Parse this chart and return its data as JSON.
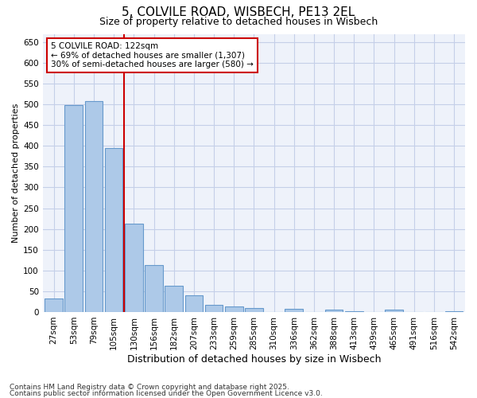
{
  "title_line1": "5, COLVILE ROAD, WISBECH, PE13 2EL",
  "title_line2": "Size of property relative to detached houses in Wisbech",
  "xlabel": "Distribution of detached houses by size in Wisbech",
  "ylabel": "Number of detached properties",
  "categories": [
    "27sqm",
    "53sqm",
    "79sqm",
    "105sqm",
    "130sqm",
    "156sqm",
    "182sqm",
    "207sqm",
    "233sqm",
    "259sqm",
    "285sqm",
    "310sqm",
    "336sqm",
    "362sqm",
    "388sqm",
    "413sqm",
    "439sqm",
    "465sqm",
    "491sqm",
    "516sqm",
    "542sqm"
  ],
  "values": [
    33,
    498,
    508,
    395,
    213,
    113,
    63,
    40,
    18,
    13,
    10,
    0,
    8,
    0,
    5,
    1,
    0,
    5,
    0,
    0,
    2
  ],
  "bar_color": "#adc9e8",
  "bar_edge_color": "#6699cc",
  "ref_line_index": 4,
  "ref_line_color": "#cc0000",
  "annotation_line1": "5 COLVILE ROAD: 122sqm",
  "annotation_line2": "← 69% of detached houses are smaller (1,307)",
  "annotation_line3": "30% of semi-detached houses are larger (580) →",
  "annotation_box_color": "#cc0000",
  "ylim": [
    0,
    670
  ],
  "yticks": [
    0,
    50,
    100,
    150,
    200,
    250,
    300,
    350,
    400,
    450,
    500,
    550,
    600,
    650
  ],
  "footer_line1": "Contains HM Land Registry data © Crown copyright and database right 2025.",
  "footer_line2": "Contains public sector information licensed under the Open Government Licence v3.0.",
  "background_color": "#eef2fa",
  "grid_color": "#c5cfe8",
  "title_fontsize": 11,
  "subtitle_fontsize": 9,
  "tick_fontsize": 7.5,
  "ylabel_fontsize": 8,
  "xlabel_fontsize": 9,
  "footer_fontsize": 6.5
}
